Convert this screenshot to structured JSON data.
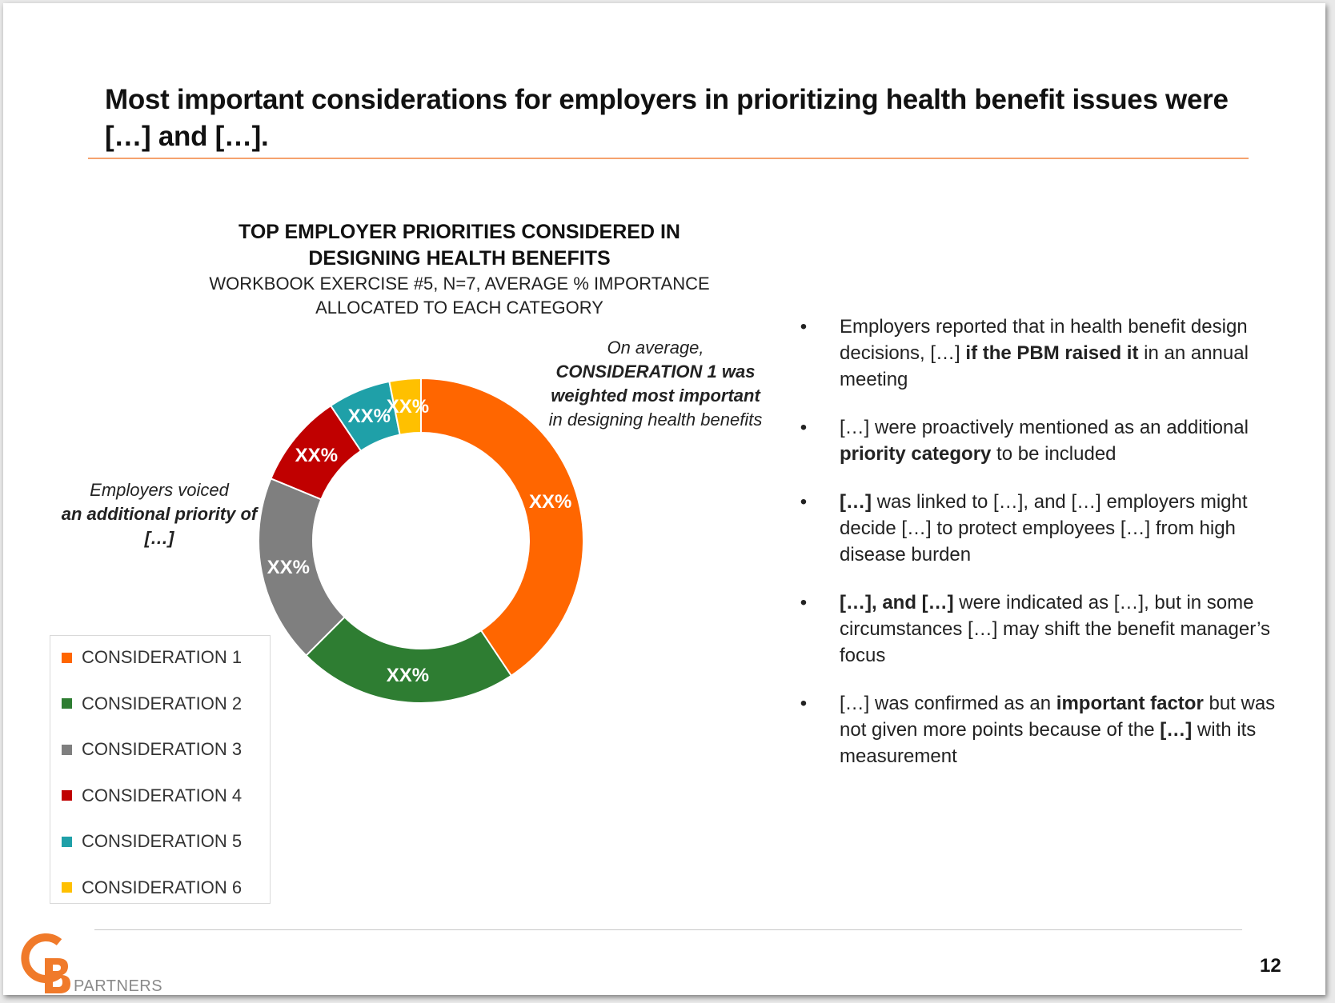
{
  "slide": {
    "title": "Most important considerations for employers in prioritizing health benefit issues were […] and […].",
    "page_number": "12"
  },
  "chart_data": {
    "type": "pie",
    "variant": "donut",
    "title": "TOP EMPLOYER PRIORITIES CONSIDERED IN DESIGNING HEALTH BENEFITS",
    "subtitle": "WORKBOOK EXERCISE #5, N=7, AVERAGE % IMPORTANCE ALLOCATED TO EACH CATEGORY",
    "categories": [
      "CONSIDERATION 1",
      "CONSIDERATION 2",
      "CONSIDERATION 3",
      "CONSIDERATION 4",
      "CONSIDERATION 5",
      "CONSIDERATION 6"
    ],
    "values": [
      39,
      21,
      18,
      9,
      6,
      3
    ],
    "data_labels": [
      "XX%",
      "XX%",
      "XX%",
      "XX%",
      "XX%",
      "XX%"
    ],
    "colors": [
      "#ff6600",
      "#2e7d32",
      "#7f7f7f",
      "#c00000",
      "#1fa0a8",
      "#ffc000"
    ],
    "legend_position": "bottom-left"
  },
  "annotations": {
    "top": {
      "line1": "On average,",
      "bold": "CONSIDERATION 1 was weighted most important",
      "rest": " in designing health benefits"
    },
    "left": {
      "line1": "Employers voiced",
      "bold": "an additional priority of […]"
    }
  },
  "bullets": [
    {
      "parts": [
        {
          "t": "Employers reported that in health benefit design decisions, […] "
        },
        {
          "t": "if the PBM raised it",
          "b": true
        },
        {
          "t": " in an annual meeting"
        }
      ]
    },
    {
      "parts": [
        {
          "t": "[…] were proactively mentioned as an additional "
        },
        {
          "t": "priority category",
          "b": true
        },
        {
          "t": " to be included"
        }
      ]
    },
    {
      "parts": [
        {
          "t": "[…]",
          "b": true
        },
        {
          "t": " was linked to […], and […] employers might decide […] to protect employees […] from high disease burden"
        }
      ]
    },
    {
      "parts": [
        {
          "t": "[…], and […]",
          "b": true
        },
        {
          "t": " were indicated as […], but in some circumstances […] may shift the benefit manager’s focus"
        }
      ]
    },
    {
      "parts": [
        {
          "t": "[…] was confirmed as an "
        },
        {
          "t": "important factor",
          "b": true
        },
        {
          "t": " but was not given more points because of the "
        },
        {
          "t": "[…]",
          "b": true
        },
        {
          "t": " with its measurement"
        }
      ]
    }
  ],
  "logo": {
    "letters": "CB",
    "text": "PARTNERS",
    "color_c": "#f07a2a",
    "color_b": "#f07a2a"
  }
}
